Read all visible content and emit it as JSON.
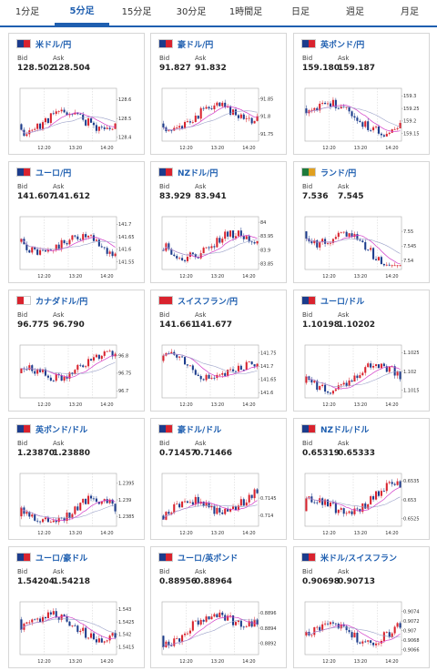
{
  "tabs": [
    {
      "label": "1分足",
      "active": false
    },
    {
      "label": "5分足",
      "active": true
    },
    {
      "label": "15分足",
      "active": false
    },
    {
      "label": "30分足",
      "active": false
    },
    {
      "label": "1時間足",
      "active": false
    },
    {
      "label": "日足",
      "active": false
    },
    {
      "label": "週足",
      "active": false
    },
    {
      "label": "月足",
      "active": false
    }
  ],
  "colors": {
    "accent": "#1f5fb0",
    "up": "#d9232e",
    "down": "#1c3c8c",
    "ma": "#d23cc8",
    "ma2": "#9aa0c8"
  },
  "cards": [
    {
      "pair": "米ドル/円",
      "bid_label": "Bid",
      "ask_label": "Ask",
      "bid": "128.502",
      "ask": "128.504",
      "flag": [
        "#1c3c8c",
        "#d9232e"
      ],
      "chart_data": {
        "type": "candlestick",
        "x_ticks": [
          "12:20",
          "13:20",
          "14:20"
        ],
        "y_ticks": [
          "128.6",
          "128.5",
          "128.4"
        ],
        "ylim": [
          128.38,
          128.66
        ],
        "seed": 11,
        "start": 128.47,
        "end": 128.5
      }
    },
    {
      "pair": "豪ドル/円",
      "bid_label": "Bid",
      "ask_label": "Ask",
      "bid": "91.827",
      "ask": "91.832",
      "flag": [
        "#1c3c8c",
        "#d9232e"
      ],
      "chart_data": {
        "type": "candlestick",
        "x_ticks": [
          "12:20",
          "13:20",
          "14:20"
        ],
        "y_ticks": [
          "91.85",
          "91.8",
          "91.75"
        ],
        "ylim": [
          91.73,
          91.88
        ],
        "seed": 23,
        "start": 91.78,
        "end": 91.82
      }
    },
    {
      "pair": "英ポンド/円",
      "bid_label": "Bid",
      "ask_label": "Ask",
      "bid": "159.180",
      "ask": "159.187",
      "flag": [
        "#1c3c8c",
        "#d9232e"
      ],
      "chart_data": {
        "type": "candlestick",
        "x_ticks": [
          "12:20",
          "13:20",
          "14:20"
        ],
        "y_ticks": [
          "159.3",
          "159.25",
          "159.2",
          "159.15"
        ],
        "ylim": [
          159.12,
          159.33
        ],
        "seed": 37,
        "start": 159.25,
        "end": 159.18
      }
    },
    {
      "pair": "ユーロ/円",
      "bid_label": "Bid",
      "ask_label": "Ask",
      "bid": "141.607",
      "ask": "141.612",
      "flag": [
        "#1c3c8c",
        "#d9232e"
      ],
      "chart_data": {
        "type": "candlestick",
        "x_ticks": [
          "12:20",
          "13:20",
          "14:20"
        ],
        "y_ticks": [
          "141.7",
          "141.65",
          "141.6",
          "141.55"
        ],
        "ylim": [
          141.52,
          141.73
        ],
        "seed": 41,
        "start": 141.63,
        "end": 141.6
      }
    },
    {
      "pair": "NZドル/円",
      "bid_label": "Bid",
      "ask_label": "Ask",
      "bid": "83.929",
      "ask": "83.941",
      "flag": [
        "#1c3c8c",
        "#d9232e"
      ],
      "chart_data": {
        "type": "candlestick",
        "x_ticks": [
          "12:20",
          "13:20",
          "14:20"
        ],
        "y_ticks": [
          "84",
          "83.95",
          "83.9",
          "83.85"
        ],
        "ylim": [
          83.83,
          84.02
        ],
        "seed": 53,
        "start": 83.9,
        "end": 83.93
      }
    },
    {
      "pair": "ランド/円",
      "bid_label": "Bid",
      "ask_label": "Ask",
      "bid": "7.536",
      "ask": "7.545",
      "flag": [
        "#1e7a3c",
        "#e0a020"
      ],
      "chart_data": {
        "type": "candlestick",
        "x_ticks": [
          "12:20",
          "13:20",
          "14:20"
        ],
        "y_ticks": [
          "7.55",
          "7.545",
          "7.54"
        ],
        "ylim": [
          7.537,
          7.555
        ],
        "seed": 61,
        "start": 7.55,
        "end": 7.539
      }
    },
    {
      "pair": "カナダドル/円",
      "bid_label": "Bid",
      "ask_label": "Ask",
      "bid": "96.775",
      "ask": "96.790",
      "flag": [
        "#d9232e",
        "#ffffff"
      ],
      "chart_data": {
        "type": "candlestick",
        "x_ticks": [
          "12:20",
          "13:20",
          "14:20"
        ],
        "y_ticks": [
          "96.8",
          "96.75",
          "96.7"
        ],
        "ylim": [
          96.68,
          96.83
        ],
        "seed": 71,
        "start": 96.75,
        "end": 96.78
      }
    },
    {
      "pair": "スイスフラン/円",
      "bid_label": "Bid",
      "ask_label": "Ask",
      "bid": "141.661",
      "ask": "141.677",
      "flag": [
        "#d9232e",
        "#d9232e"
      ],
      "chart_data": {
        "type": "candlestick",
        "x_ticks": [
          "12:20",
          "13:20",
          "14:20"
        ],
        "y_ticks": [
          "141.75",
          "141.7",
          "141.65",
          "141.6"
        ],
        "ylim": [
          141.58,
          141.78
        ],
        "seed": 83,
        "start": 141.72,
        "end": 141.66
      }
    },
    {
      "pair": "ユーロ/ドル",
      "bid_label": "Bid",
      "ask_label": "Ask",
      "bid": "1.10198",
      "ask": "1.10202",
      "flag": [
        "#1c3c8c",
        "#d9232e"
      ],
      "chart_data": {
        "type": "candlestick",
        "x_ticks": [
          "12:20",
          "13:20",
          "14:20"
        ],
        "y_ticks": [
          "1.1025",
          "1.102",
          "1.1015"
        ],
        "ylim": [
          1.1013,
          1.1027
        ],
        "seed": 97,
        "start": 1.1017,
        "end": 1.102
      }
    },
    {
      "pair": "英ポンド/ドル",
      "bid_label": "Bid",
      "ask_label": "Ask",
      "bid": "1.23870",
      "ask": "1.23880",
      "flag": [
        "#1c3c8c",
        "#d9232e"
      ],
      "chart_data": {
        "type": "candlestick",
        "x_ticks": [
          "12:20",
          "13:20",
          "14:20"
        ],
        "y_ticks": [
          "1.2395",
          "1.239",
          "1.2385"
        ],
        "ylim": [
          1.2382,
          1.2398
        ],
        "seed": 103,
        "start": 1.2385,
        "end": 1.2388
      }
    },
    {
      "pair": "豪ドル/ドル",
      "bid_label": "Bid",
      "ask_label": "Ask",
      "bid": "0.71457",
      "ask": "0.71466",
      "flag": [
        "#1c3c8c",
        "#d9232e"
      ],
      "chart_data": {
        "type": "candlestick",
        "x_ticks": [
          "12:20",
          "13:20",
          "14:20"
        ],
        "y_ticks": [
          "0.7145",
          "0.714"
        ],
        "ylim": [
          0.7137,
          0.7152
        ],
        "seed": 113,
        "start": 0.714,
        "end": 0.7146
      }
    },
    {
      "pair": "NZドル/ドル",
      "bid_label": "Bid",
      "ask_label": "Ask",
      "bid": "0.65319",
      "ask": "0.65333",
      "flag": [
        "#1c3c8c",
        "#d9232e"
      ],
      "chart_data": {
        "type": "candlestick",
        "x_ticks": [
          "12:20",
          "13:20",
          "14:20"
        ],
        "y_ticks": [
          "0.6535",
          "0.653",
          "0.6525"
        ],
        "ylim": [
          0.6523,
          0.6537
        ],
        "seed": 127,
        "start": 0.6527,
        "end": 0.6532
      }
    },
    {
      "pair": "ユーロ/豪ドル",
      "bid_label": "Bid",
      "ask_label": "Ask",
      "bid": "1.54204",
      "ask": "1.54218",
      "flag": [
        "#1c3c8c",
        "#d9232e"
      ],
      "chart_data": {
        "type": "candlestick",
        "x_ticks": [
          "12:20",
          "13:20",
          "14:20"
        ],
        "y_ticks": [
          "1.543",
          "1.5425",
          "1.542",
          "1.5415"
        ],
        "ylim": [
          1.5412,
          1.5433
        ],
        "seed": 131,
        "start": 1.5426,
        "end": 1.5421
      }
    },
    {
      "pair": "ユーロ/英ポンド",
      "bid_label": "Bid",
      "ask_label": "Ask",
      "bid": "0.88956",
      "ask": "0.88964",
      "flag": [
        "#1c3c8c",
        "#d9232e"
      ],
      "chart_data": {
        "type": "candlestick",
        "x_ticks": [
          "12:20",
          "13:20",
          "14:20"
        ],
        "y_ticks": [
          "0.8896",
          "0.8894",
          "0.8892"
        ],
        "ylim": [
          0.88905,
          0.88975
        ],
        "seed": 149,
        "start": 0.8893,
        "end": 0.8896
      }
    },
    {
      "pair": "米ドル/スイスフラン",
      "bid_label": "Bid",
      "ask_label": "Ask",
      "bid": "0.90698",
      "ask": "0.90713",
      "flag": [
        "#1c3c8c",
        "#d9232e"
      ],
      "chart_data": {
        "type": "candlestick",
        "x_ticks": [
          "12:20",
          "13:20",
          "14:20"
        ],
        "y_ticks": [
          "0.9074",
          "0.9072",
          "0.907",
          "0.9068",
          "0.9066"
        ],
        "ylim": [
          0.9065,
          0.9076
        ],
        "seed": 157,
        "start": 0.9069,
        "end": 0.907
      }
    }
  ]
}
